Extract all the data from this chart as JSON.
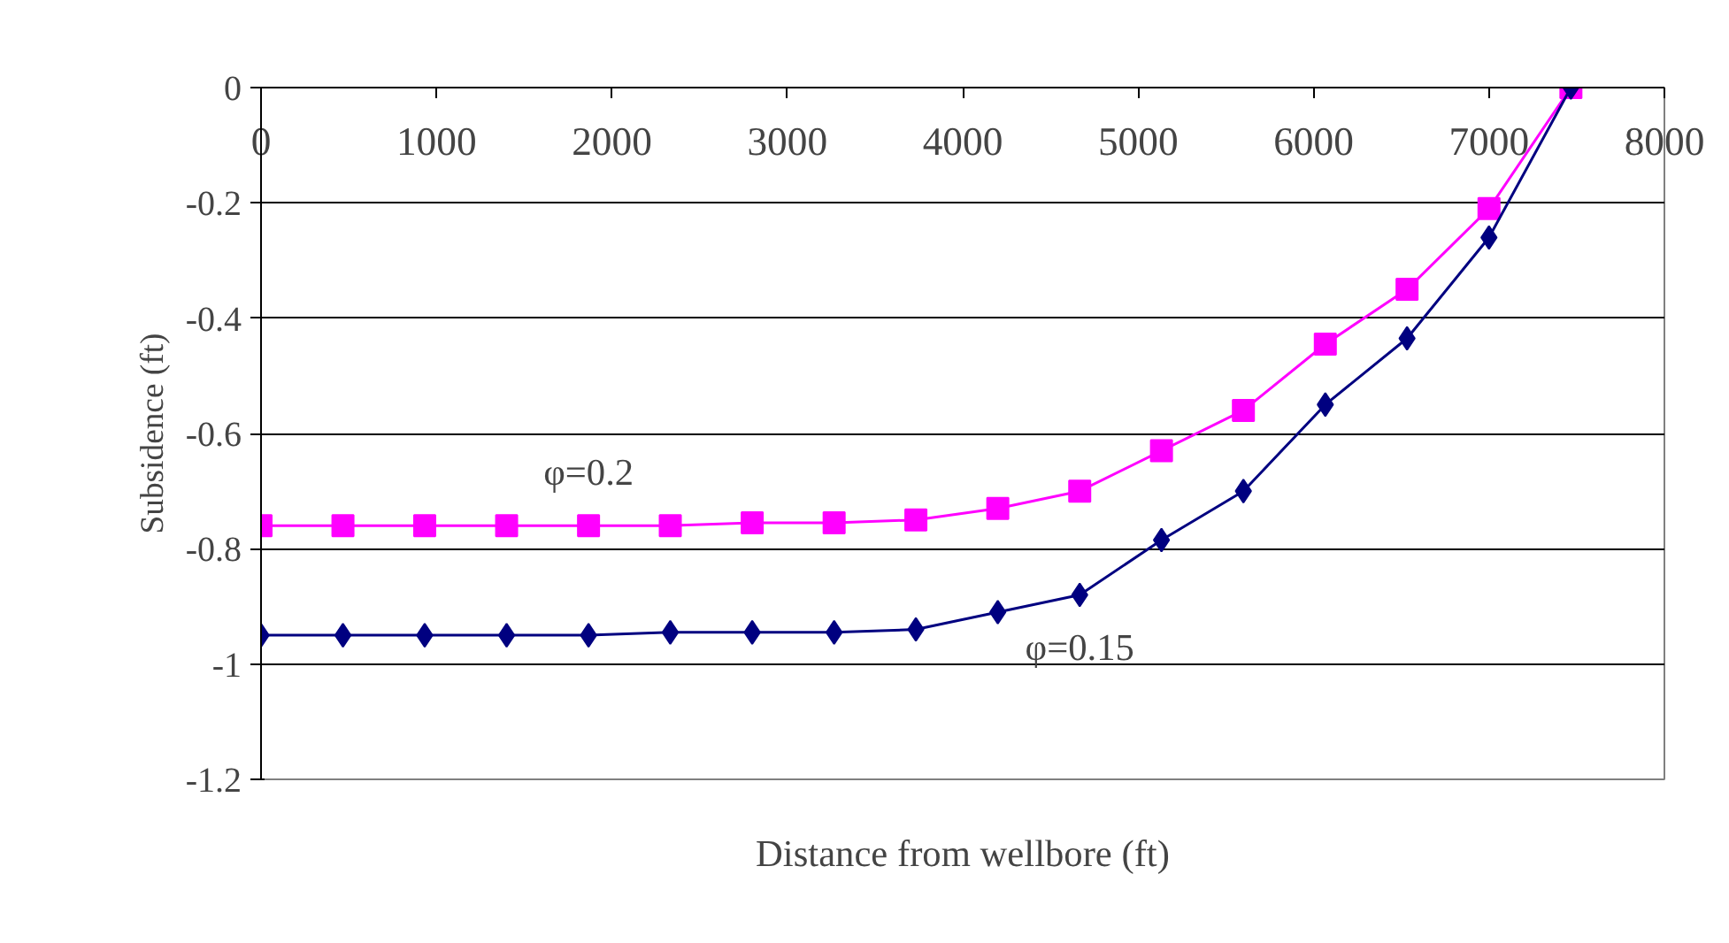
{
  "chart_data": {
    "type": "line",
    "xlabel": "Distance from wellbore (ft)",
    "ylabel": "Subsidence (ft)",
    "x": [
      0,
      467,
      933,
      1400,
      1867,
      2333,
      2800,
      3267,
      3733,
      4200,
      4667,
      5133,
      5600,
      6067,
      6533,
      7000,
      7467
    ],
    "series": [
      {
        "name": "φ=0.2",
        "color": "#ff00ff",
        "marker": "square",
        "values": [
          -0.76,
          -0.76,
          -0.76,
          -0.76,
          -0.76,
          -0.76,
          -0.755,
          -0.755,
          -0.75,
          -0.73,
          -0.7,
          -0.63,
          -0.56,
          -0.445,
          -0.35,
          -0.21,
          0
        ]
      },
      {
        "name": "φ=0.15",
        "color": "#000080",
        "marker": "diamond",
        "values": [
          -0.95,
          -0.95,
          -0.95,
          -0.95,
          -0.95,
          -0.945,
          -0.945,
          -0.945,
          -0.94,
          -0.91,
          -0.88,
          -0.785,
          -0.7,
          -0.55,
          -0.435,
          -0.26,
          0
        ]
      }
    ],
    "xlim": [
      0,
      8000
    ],
    "xticks": [
      0,
      1000,
      2000,
      3000,
      4000,
      5000,
      6000,
      7000,
      8000
    ],
    "ylim": [
      -1.2,
      0
    ],
    "yticks": [
      0,
      -0.2,
      -0.4,
      -0.6,
      -0.8,
      -1,
      -1.2
    ],
    "grid": "y",
    "line_style": "solid"
  }
}
